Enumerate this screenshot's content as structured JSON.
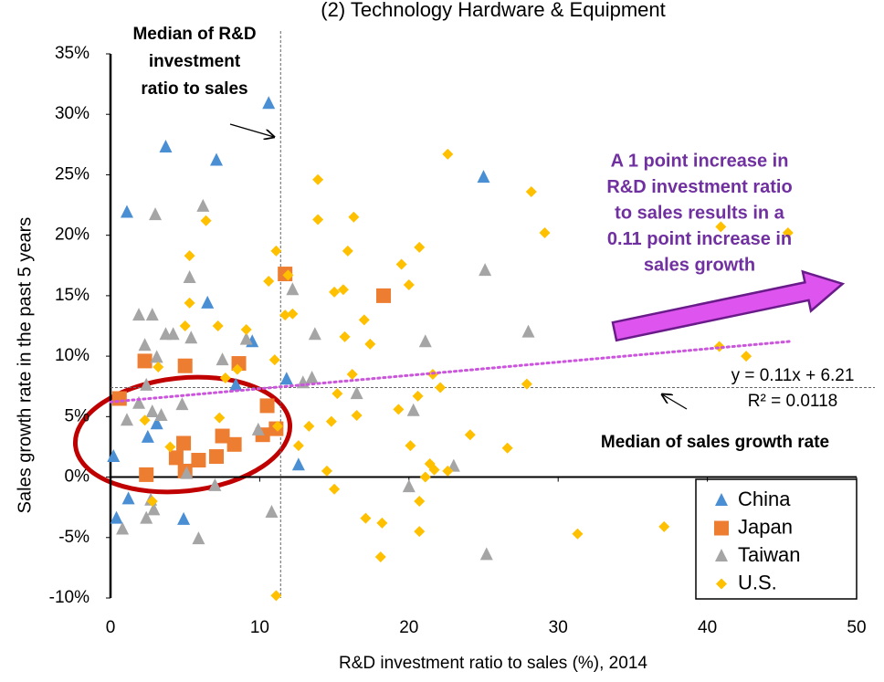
{
  "chart_data": {
    "type": "scatter",
    "title": "(2) Technology Hardware & Equipment",
    "x_label": "R&D investment ratio to sales (%), 2014",
    "y_label": "Sales growth rate in the past 5 years",
    "xlim": [
      0,
      50
    ],
    "ylim": [
      -10,
      35
    ],
    "xticks": [
      0,
      10,
      20,
      30,
      40,
      50
    ],
    "yticks": [
      {
        "value": -10,
        "label": "-10%"
      },
      {
        "value": -5,
        "label": "-5%"
      },
      {
        "value": 0,
        "label": "0%"
      },
      {
        "value": 5,
        "label": "5%"
      },
      {
        "value": 10,
        "label": "10%"
      },
      {
        "value": 15,
        "label": "15%"
      },
      {
        "value": 20,
        "label": "20%"
      },
      {
        "value": 25,
        "label": "25%"
      },
      {
        "value": 30,
        "label": "30%"
      },
      {
        "value": 35,
        "label": "35%"
      }
    ],
    "grid": false,
    "legend": "lower right",
    "series": [
      {
        "name": "China",
        "color": "#4a8fd4",
        "marker": "triangle",
        "x": [
          10.6,
          3.7,
          7.1,
          1.1,
          25.0,
          6.5,
          9.5,
          8.4,
          11.8,
          3.1,
          2.5,
          0.2,
          12.6,
          1.2,
          0.4,
          4.9
        ],
        "values": [
          30.9,
          27.3,
          26.2,
          21.9,
          24.8,
          14.4,
          11.2,
          7.6,
          8.1,
          4.4,
          3.3,
          1.7,
          1.0,
          -1.8,
          -3.4,
          -3.5
        ]
      },
      {
        "name": "Japan",
        "color": "#ed7d31",
        "marker": "square",
        "x": [
          0.6,
          2.3,
          11.7,
          18.3,
          8.6,
          5.0,
          10.5,
          10.2,
          11.1,
          2.4,
          4.9,
          4.4,
          5.0,
          5.9,
          7.1,
          7.5,
          8.3
        ],
        "values": [
          6.5,
          9.6,
          16.8,
          15.0,
          9.4,
          9.2,
          5.9,
          3.5,
          4.0,
          0.2,
          2.8,
          1.6,
          0.5,
          1.4,
          1.7,
          3.4,
          2.7
        ]
      },
      {
        "name": "Taiwan",
        "color": "#a5a5a5",
        "marker": "triangle",
        "x": [
          3.0,
          6.2,
          5.3,
          1.9,
          2.8,
          3.7,
          4.2,
          5.4,
          2.3,
          3.1,
          7.5,
          9.1,
          12.2,
          13.7,
          21.1,
          25.1,
          28.0,
          2.4,
          1.9,
          2.8,
          3.4,
          1.1,
          4.8,
          9.9,
          12.9,
          13.5,
          16.5,
          20.3,
          23.0,
          20.0,
          5.1,
          2.9,
          2.7,
          0.8,
          5.9,
          10.8,
          25.2,
          2.4,
          7.0
        ],
        "values": [
          21.7,
          22.4,
          16.5,
          13.4,
          13.4,
          11.8,
          11.8,
          11.5,
          10.9,
          9.9,
          9.7,
          11.4,
          15.5,
          11.8,
          11.2,
          17.1,
          12.0,
          7.6,
          6.1,
          5.4,
          5.1,
          4.7,
          6.0,
          3.9,
          7.8,
          8.2,
          6.9,
          5.5,
          0.9,
          -0.8,
          0.3,
          -2.7,
          -1.9,
          -4.3,
          -5.1,
          -2.9,
          -6.4,
          -3.4,
          -0.7
        ]
      },
      {
        "name": "U.S.",
        "color": "#ffc000",
        "marker": "diamond",
        "x": [
          22.6,
          28.2,
          13.9,
          13.9,
          16.3,
          6.4,
          11.1,
          15.9,
          20.7,
          29.1,
          40.9,
          45.4,
          19.5,
          5.3,
          10.6,
          11.9,
          20.0,
          15.0,
          15.6,
          5.3,
          11.7,
          12.2,
          17.0,
          5.0,
          7.2,
          9.1,
          15.7,
          17.4,
          11.0,
          3.2,
          8.5,
          7.7,
          16.2,
          21.6,
          22.1,
          27.9,
          40.8,
          42.6,
          15.2,
          19.3,
          20.6,
          16.5,
          2.3,
          7.3,
          13.3,
          14.8,
          11.2,
          12.6,
          4.0,
          20.1,
          24.1,
          26.6,
          21.4,
          21.7,
          22.6,
          21.1,
          14.5,
          15.0,
          20.7,
          2.8,
          17.1,
          18.2,
          20.7,
          31.3,
          37.1,
          18.1,
          11.1
        ],
        "values": [
          26.7,
          23.6,
          24.6,
          21.3,
          21.5,
          21.2,
          18.7,
          18.7,
          19.0,
          20.2,
          20.7,
          20.2,
          17.6,
          18.3,
          16.2,
          16.7,
          15.9,
          15.3,
          15.5,
          14.4,
          13.4,
          13.5,
          13.0,
          12.5,
          12.5,
          12.2,
          11.6,
          11.0,
          9.7,
          9.1,
          8.9,
          8.2,
          8.5,
          8.5,
          7.4,
          7.7,
          10.8,
          10.0,
          6.9,
          5.6,
          6.7,
          5.1,
          4.7,
          4.9,
          4.2,
          4.6,
          4.2,
          2.6,
          2.5,
          2.6,
          3.5,
          2.4,
          1.1,
          0.6,
          0.5,
          0.0,
          0.5,
          -1.0,
          -2.0,
          -2.0,
          -3.4,
          -3.8,
          -4.5,
          -4.7,
          -4.1,
          -6.6,
          -9.8
        ]
      }
    ],
    "trendline": {
      "color": "#cc55dd",
      "x": [
        0,
        45.5
      ],
      "slope": 0.11,
      "intercept": 6.21,
      "equation": "y = 0.11x + 6.21",
      "r2": "R² = 0.0118"
    },
    "median_x": 11.4,
    "median_y": 7.4,
    "annotations": [
      {
        "lines": [
          "Median of R&D",
          "investment",
          "ratio to sales"
        ]
      },
      {
        "lines": [
          "A 1 point increase in",
          "R&D investment ratio",
          "to sales results in a",
          "0.11 point increase in",
          "sales growth"
        ]
      },
      {
        "lines": [
          "Median of sales growth rate"
        ]
      }
    ]
  }
}
